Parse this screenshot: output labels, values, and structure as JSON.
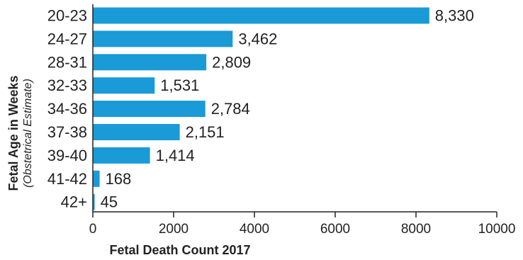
{
  "chart_data": {
    "type": "bar",
    "orientation": "horizontal",
    "categories": [
      "20-23",
      "24-27",
      "28-31",
      "32-33",
      "34-36",
      "37-38",
      "39-40",
      "41-42",
      "42+"
    ],
    "values": [
      8330,
      3462,
      2809,
      1531,
      2784,
      2151,
      1414,
      168,
      45
    ],
    "value_labels": [
      "8,330",
      "3,462",
      "2,809",
      "1,531",
      "2,784",
      "2,151",
      "1,414",
      "168",
      "45"
    ],
    "xlabel": "Fetal Death Count 2017",
    "ylabel": "Fetal Age in Weeks",
    "ylabel_sub": "(Obstetrical Estimate)",
    "xlim": [
      0,
      10000
    ],
    "xticks": [
      0,
      2000,
      4000,
      6000,
      8000,
      10000
    ],
    "xtick_labels": [
      "0",
      "2000",
      "4000",
      "6000",
      "8000",
      "10000"
    ],
    "grid": false,
    "colors": {
      "bar": "#1a9ad6",
      "axis": "#222222"
    }
  }
}
